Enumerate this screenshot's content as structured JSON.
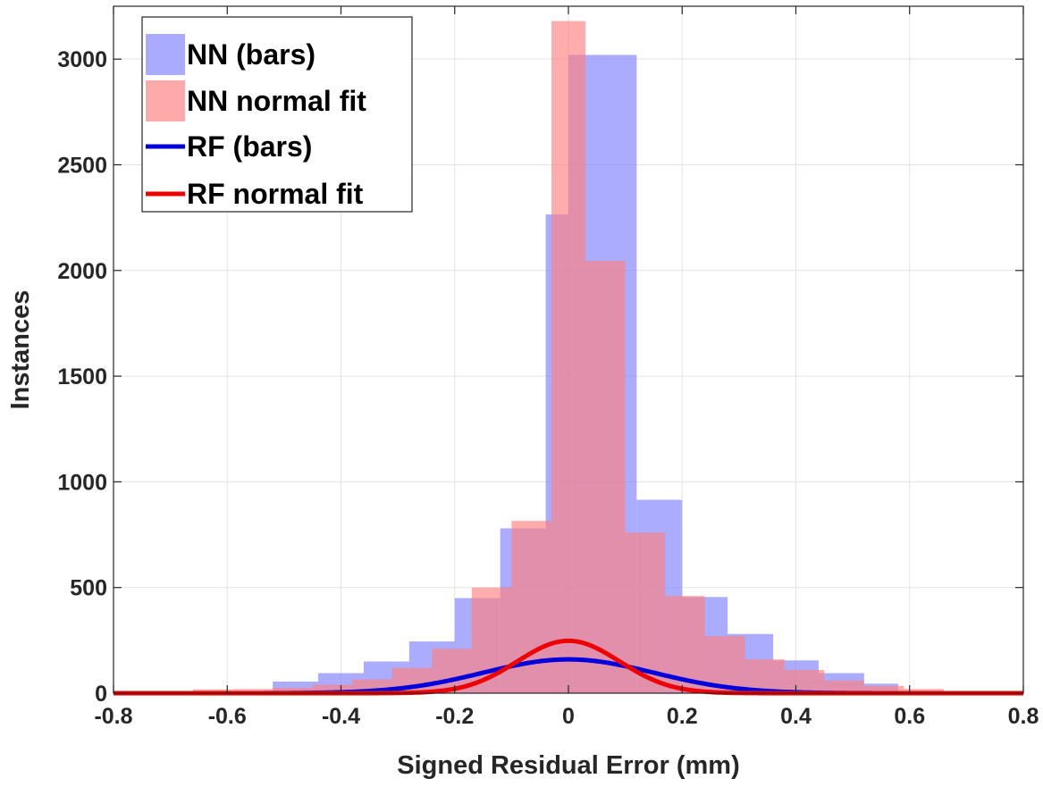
{
  "chart_data": {
    "type": "bar",
    "title": "",
    "xlabel": "Signed Residual Error (mm)",
    "ylabel": "Instances",
    "xlim": [
      -0.8,
      0.8
    ],
    "ylim": [
      0,
      3250
    ],
    "grid": true,
    "legend_position": "top-left",
    "xticks": [
      -0.8,
      -0.6,
      -0.4,
      -0.2,
      0,
      0.2,
      0.4,
      0.6,
      0.8
    ],
    "xtick_labels": [
      "-0.8",
      "-0.6",
      "-0.4",
      "-0.2",
      "0",
      "0.2",
      "0.4",
      "0.6",
      "0.8"
    ],
    "yticks": [
      0,
      500,
      1000,
      1500,
      2000,
      2500,
      3000
    ],
    "ytick_labels": [
      "0",
      "500",
      "1000",
      "1500",
      "2000",
      "2500",
      "3000"
    ],
    "legend": [
      {
        "label": "NN (bars)",
        "kind": "patch",
        "color": "#aaaaff"
      },
      {
        "label": "NN normal fit",
        "kind": "patch",
        "color": "#ffaaaa"
      },
      {
        "label": "RF (bars)",
        "kind": "line",
        "color": "#0000dd"
      },
      {
        "label": "RF normal fit",
        "kind": "line",
        "color": "#ee0000"
      }
    ],
    "series": [
      {
        "name": "NN (bars)",
        "kind": "histogram",
        "color": "#7f7fff",
        "opacity": 0.65,
        "bin_edges": [
          -0.52,
          -0.44,
          -0.36,
          -0.28,
          -0.2,
          -0.12,
          -0.04,
          0.0,
          0.04,
          0.12,
          0.2,
          0.28,
          0.36,
          0.44,
          0.52,
          0.58
        ],
        "values": [
          55,
          95,
          150,
          245,
          450,
          780,
          2265,
          3020,
          3020,
          915,
          455,
          280,
          155,
          95,
          45
        ]
      },
      {
        "name": "NN normal fit",
        "kind": "histogram",
        "color": "#ff7f7f",
        "opacity": 0.65,
        "bin_edges": [
          -0.66,
          -0.59,
          -0.52,
          -0.45,
          -0.38,
          -0.31,
          -0.24,
          -0.17,
          -0.1,
          -0.03,
          0.03,
          0.1,
          0.17,
          0.24,
          0.31,
          0.38,
          0.45,
          0.52,
          0.59,
          0.66
        ],
        "values": [
          18,
          20,
          25,
          40,
          65,
          120,
          210,
          500,
          815,
          3180,
          2045,
          760,
          460,
          270,
          160,
          110,
          60,
          35,
          20
        ]
      },
      {
        "name": "RF (bars)",
        "kind": "normal_curve",
        "color": "#0000dd",
        "mu": 0.0,
        "sigma": 0.15,
        "peak": 160
      },
      {
        "name": "RF normal fit",
        "kind": "normal_curve",
        "color": "#ee0000",
        "mu": 0.0,
        "sigma": 0.09,
        "peak": 248
      }
    ]
  }
}
